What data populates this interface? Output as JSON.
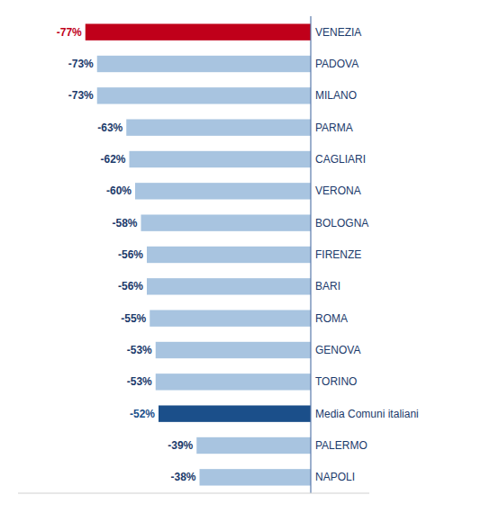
{
  "chart_data": {
    "type": "bar",
    "orientation": "horizontal",
    "categories": [
      "VENEZIA",
      "PADOVA",
      "MILANO",
      "PARMA",
      "CAGLIARI",
      "VERONA",
      "BOLOGNA",
      "FIRENZE",
      "BARI",
      "ROMA",
      "GENOVA",
      "TORINO",
      "Media Comuni italiani",
      "PALERMO",
      "NAPOLI"
    ],
    "values": [
      -77,
      -73,
      -73,
      -63,
      -62,
      -60,
      -58,
      -56,
      -56,
      -55,
      -53,
      -53,
      -52,
      -39,
      -38
    ],
    "value_labels": [
      "-77%",
      "-73%",
      "-73%",
      "-63%",
      "-62%",
      "-60%",
      "-58%",
      "-56%",
      "-56%",
      "-55%",
      "-53%",
      "-53%",
      "-52%",
      "-39%",
      "-38%"
    ],
    "colors": [
      "#c0001a",
      "#a8c4e0",
      "#a8c4e0",
      "#a8c4e0",
      "#a8c4e0",
      "#a8c4e0",
      "#a8c4e0",
      "#a8c4e0",
      "#a8c4e0",
      "#a8c4e0",
      "#a8c4e0",
      "#a8c4e0",
      "#1b4f8a",
      "#a8c4e0",
      "#a8c4e0"
    ],
    "xlim": [
      -100,
      20
    ],
    "data_labels": true,
    "tick_labels": false,
    "grid": false
  }
}
